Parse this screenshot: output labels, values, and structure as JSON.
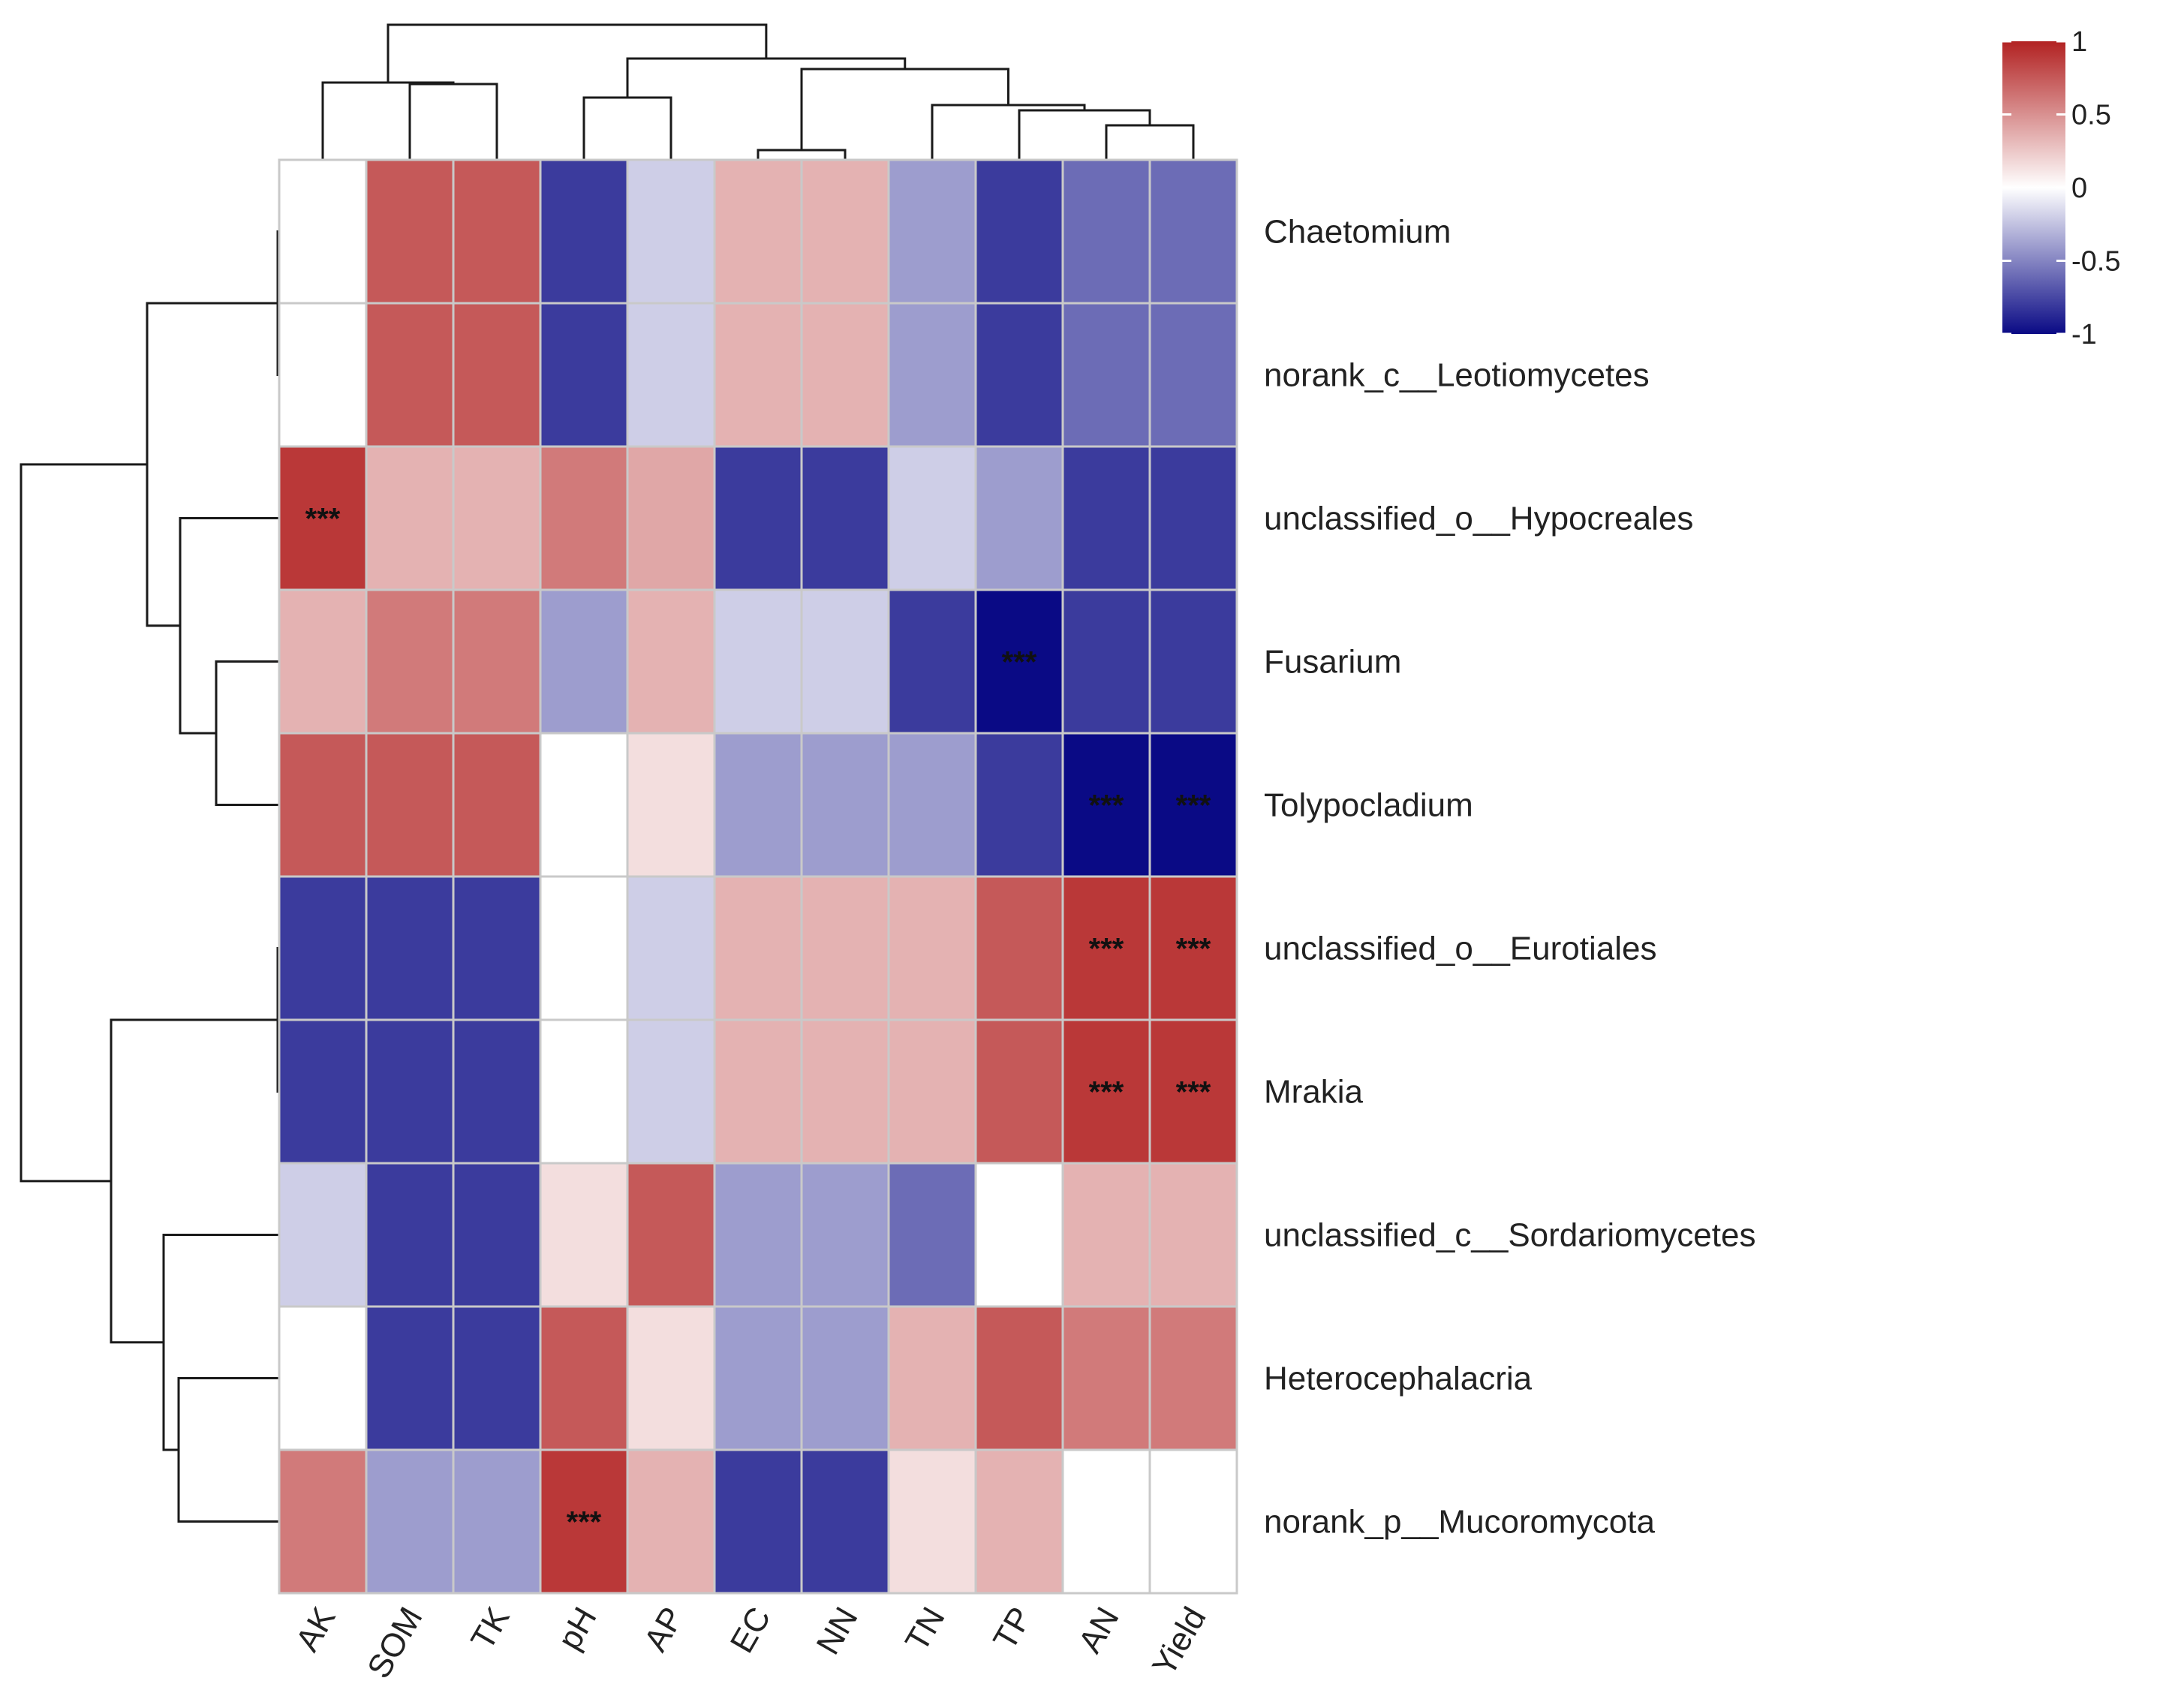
{
  "chart_data": {
    "type": "heatmap",
    "rows": [
      "Chaetomium",
      "norank_c__Leotiomycetes",
      "unclassified_o__Hypocreales",
      "Fusarium",
      "Tolypocladium",
      "unclassified_o__Eurotiales",
      "Mrakia",
      "unclassified_c__Sordariomycetes",
      "Heterocephalacria",
      "norank_p__Mucoromycota"
    ],
    "columns": [
      "AK",
      "SOM",
      "TK",
      "pH",
      "AP",
      "EC",
      "NN",
      "TN",
      "TP",
      "AN",
      "Yield"
    ],
    "values": [
      [
        0.0,
        0.75,
        0.75,
        -0.8,
        -0.2,
        0.35,
        0.35,
        -0.4,
        -0.8,
        -0.6,
        -0.6
      ],
      [
        0.0,
        0.75,
        0.75,
        -0.8,
        -0.2,
        0.35,
        0.35,
        -0.4,
        -0.8,
        -0.6,
        -0.6
      ],
      [
        0.9,
        0.35,
        0.35,
        0.6,
        0.4,
        -0.8,
        -0.8,
        -0.2,
        -0.4,
        -0.8,
        -0.8
      ],
      [
        0.35,
        0.6,
        0.6,
        -0.4,
        0.35,
        -0.2,
        -0.2,
        -0.8,
        -1.0,
        -0.8,
        -0.8
      ],
      [
        0.75,
        0.75,
        0.75,
        0.0,
        0.15,
        -0.4,
        -0.4,
        -0.4,
        -0.8,
        -1.0,
        -1.0
      ],
      [
        -0.8,
        -0.8,
        -0.8,
        0.0,
        -0.2,
        0.35,
        0.35,
        0.35,
        0.75,
        0.9,
        0.9
      ],
      [
        -0.8,
        -0.8,
        -0.8,
        0.0,
        -0.2,
        0.35,
        0.35,
        0.35,
        0.75,
        0.9,
        0.9
      ],
      [
        -0.2,
        -0.8,
        -0.8,
        0.15,
        0.75,
        -0.4,
        -0.4,
        -0.6,
        0.0,
        0.35,
        0.35
      ],
      [
        0.0,
        -0.8,
        -0.8,
        0.75,
        0.15,
        -0.4,
        -0.4,
        0.35,
        0.75,
        0.6,
        0.6
      ],
      [
        0.6,
        -0.4,
        -0.4,
        0.9,
        0.35,
        -0.8,
        -0.8,
        0.15,
        0.35,
        0.0,
        0.0
      ]
    ],
    "significance": [
      {
        "row": 2,
        "col": 0,
        "label": "***"
      },
      {
        "row": 3,
        "col": 8,
        "label": "***"
      },
      {
        "row": 4,
        "col": 9,
        "label": "***"
      },
      {
        "row": 4,
        "col": 10,
        "label": "***"
      },
      {
        "row": 5,
        "col": 9,
        "label": "***"
      },
      {
        "row": 5,
        "col": 10,
        "label": "***"
      },
      {
        "row": 6,
        "col": 9,
        "label": "***"
      },
      {
        "row": 6,
        "col": 10,
        "label": "***"
      },
      {
        "row": 9,
        "col": 3,
        "label": "***"
      }
    ],
    "color_scale": {
      "min": -1,
      "max": 1,
      "low_color": "#0a0a85",
      "mid_color": "#ffffff",
      "high_color": "#b22222",
      "ticks": [
        "1",
        "0.5",
        "0",
        "-0.5",
        "-1"
      ]
    },
    "row_dendrogram": true,
    "column_dendrogram": true,
    "legend_position": "top-right",
    "grid": true
  }
}
